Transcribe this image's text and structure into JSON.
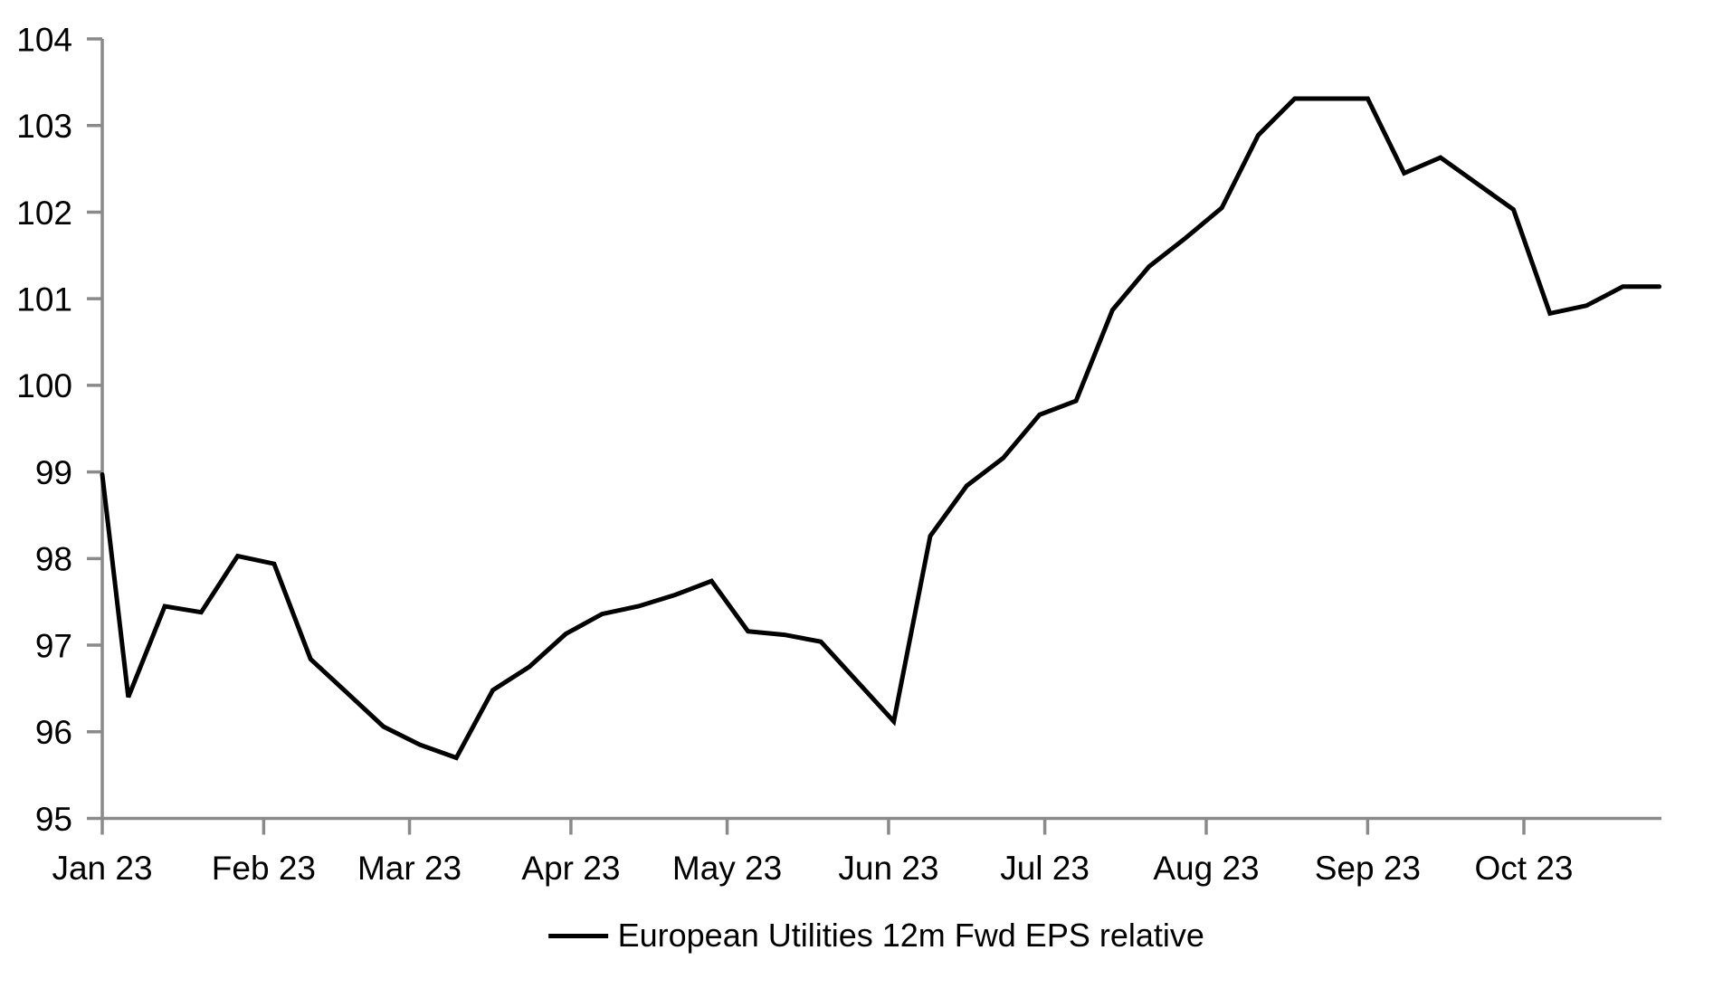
{
  "chart_data": {
    "type": "line",
    "title": "",
    "xlabel": "",
    "ylabel": "",
    "ylim": [
      95,
      104
    ],
    "grid": false,
    "legend_position": "bottom-center",
    "axis_color": "#8a8a8a",
    "tick_label_color": "#000000",
    "y_ticks": [
      95,
      96,
      97,
      98,
      99,
      100,
      101,
      102,
      103,
      104
    ],
    "x_ticks": [
      {
        "label": "Jan 23",
        "date": "2023-01-01"
      },
      {
        "label": "Feb 23",
        "date": "2023-02-01"
      },
      {
        "label": "Mar 23",
        "date": "2023-03-01"
      },
      {
        "label": "Apr 23",
        "date": "2023-04-01"
      },
      {
        "label": "May 23",
        "date": "2023-05-01"
      },
      {
        "label": "Jun 23",
        "date": "2023-06-01"
      },
      {
        "label": "Jul 23",
        "date": "2023-07-01"
      },
      {
        "label": "Aug 23",
        "date": "2023-08-01"
      },
      {
        "label": "Sep 23",
        "date": "2023-09-01"
      },
      {
        "label": "Oct 23",
        "date": "2023-10-01"
      }
    ],
    "series": [
      {
        "name": "European Utilities 12m Fwd EPS relative",
        "color": "#000000",
        "x": [
          "2023-01-01",
          "2023-01-06",
          "2023-01-13",
          "2023-01-20",
          "2023-01-27",
          "2023-02-03",
          "2023-02-10",
          "2023-02-17",
          "2023-02-24",
          "2023-03-03",
          "2023-03-10",
          "2023-03-17",
          "2023-03-24",
          "2023-03-31",
          "2023-04-07",
          "2023-04-14",
          "2023-04-21",
          "2023-04-28",
          "2023-05-05",
          "2023-05-12",
          "2023-05-19",
          "2023-05-26",
          "2023-06-02",
          "2023-06-09",
          "2023-06-16",
          "2023-06-23",
          "2023-06-30",
          "2023-07-07",
          "2023-07-14",
          "2023-07-21",
          "2023-07-28",
          "2023-08-04",
          "2023-08-11",
          "2023-08-18",
          "2023-08-25",
          "2023-09-01",
          "2023-09-08",
          "2023-09-15",
          "2023-09-22",
          "2023-09-29",
          "2023-10-06",
          "2023-10-13",
          "2023-10-20",
          "2023-10-27"
        ],
        "values": [
          98.97,
          96.4,
          97.45,
          97.38,
          98.03,
          97.94,
          96.84,
          96.45,
          96.06,
          95.85,
          95.7,
          96.48,
          96.75,
          97.13,
          97.36,
          97.45,
          97.58,
          97.74,
          97.16,
          97.12,
          97.04,
          96.58,
          96.12,
          98.26,
          98.84,
          99.16,
          99.66,
          99.82,
          100.87,
          101.37,
          101.7,
          102.05,
          102.89,
          103.31,
          103.31,
          103.31,
          102.45,
          102.63,
          102.33,
          102.03,
          100.83,
          100.92,
          101.14,
          101.14
        ]
      }
    ]
  }
}
